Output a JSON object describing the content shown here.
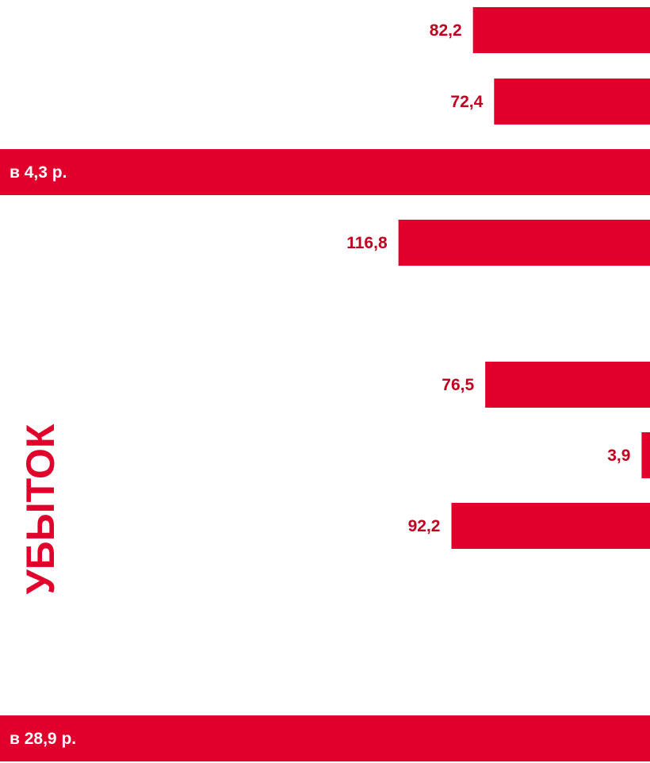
{
  "colors": {
    "bar": "#e0002b",
    "value_label": "#c0001f",
    "inbar_label": "#ffffff",
    "side_label": "#e0002b"
  },
  "chart_data": {
    "type": "bar",
    "orientation": "horizontal",
    "bars": [
      {
        "kind": "value",
        "value": 82.2,
        "label": "82,2"
      },
      {
        "kind": "value",
        "value": 72.4,
        "label": "72,4"
      },
      {
        "kind": "full",
        "label": "в 4,3 р."
      },
      {
        "kind": "value",
        "value": 116.8,
        "label": "116,8"
      },
      {
        "kind": "value",
        "value": 76.5,
        "label": "76,5"
      },
      {
        "kind": "value",
        "value": 3.9,
        "label": "3,9"
      },
      {
        "kind": "value",
        "value": 92.2,
        "label": "92,2"
      },
      {
        "kind": "full",
        "label": "в 28,9 р."
      }
    ],
    "side_label": "УБЫТОК",
    "title": "",
    "xlabel": "",
    "ylabel": "",
    "grid": false,
    "legend": "none"
  }
}
